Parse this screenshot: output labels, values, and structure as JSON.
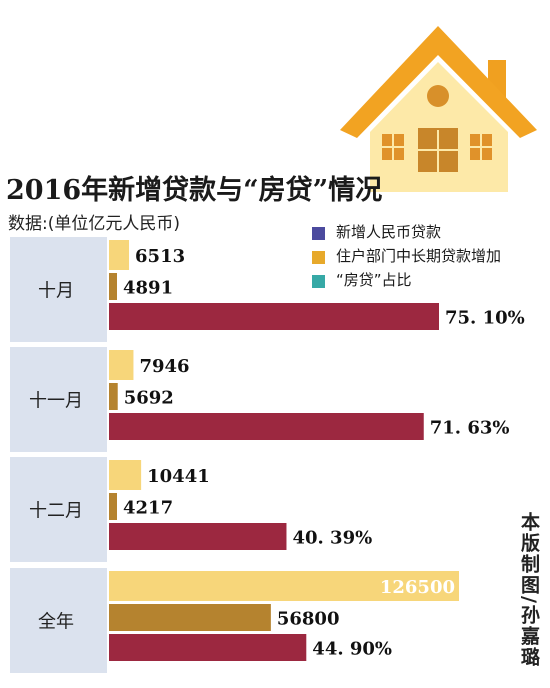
{
  "title": "2016年新增贷款与“房贷”情况",
  "subtitle": "数据:(单位亿元人民币)",
  "credit": "本版制图/孙嘉璐",
  "icon": "house-icon",
  "colors": {
    "new_loans": "#f7d67a",
    "household_mortgage": "#b5832f",
    "share": "#9c2840",
    "label_band": "#dbe2ee",
    "legend_new_loans": "#4b4a9e",
    "legend_mortgage": "#e7a92b",
    "legend_share": "#36a9a6"
  },
  "legend": [
    {
      "label": "新增人民币贷款",
      "color": "#4b4a9e"
    },
    {
      "label": "住户部门中长期贷款增加",
      "color": "#e7a92b"
    },
    {
      "label": "“房贷”占比",
      "color": "#36a9a6"
    }
  ],
  "chart_data": {
    "type": "bar",
    "title": "2016年新增贷款与“房贷”情况",
    "subtitle": "数据:(单位亿元人民币)",
    "categories": [
      "十月",
      "十一月",
      "十二月",
      "全年"
    ],
    "series": [
      {
        "name": "新增人民币贷款",
        "values": [
          6513,
          7946,
          10441,
          126500
        ],
        "labels": [
          "6513",
          "7946",
          "10441",
          "126500"
        ]
      },
      {
        "name": "住户部门中长期贷款增加",
        "values": [
          4891,
          5692,
          4217,
          56800
        ],
        "labels": [
          "4891",
          "5692",
          "4217",
          "56800"
        ]
      },
      {
        "name": "“房贷”占比",
        "values": [
          75.1,
          71.63,
          40.39,
          44.9
        ],
        "labels": [
          "75. 10%",
          "71. 63%",
          "40. 39%",
          "44. 90%"
        ]
      }
    ],
    "orientation": "horizontal",
    "legend": "top-right"
  }
}
